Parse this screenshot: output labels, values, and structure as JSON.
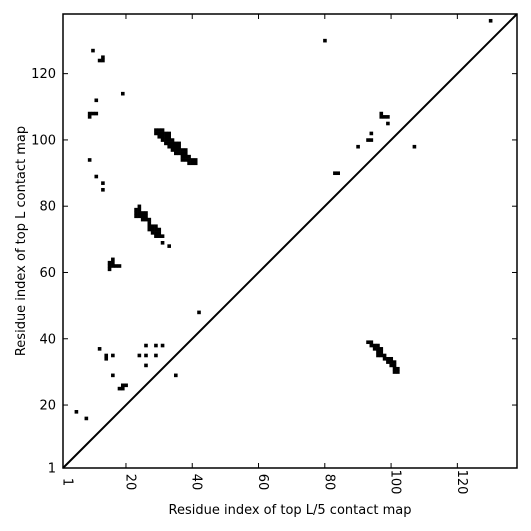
{
  "chart_data": {
    "type": "scatter",
    "title": "",
    "xlabel": "Residue index of top L/5 contact map",
    "ylabel": "Residue index of top L contact map",
    "xlim": [
      1,
      138
    ],
    "ylim": [
      1,
      138
    ],
    "grid": false,
    "legend": "none",
    "marker": "square",
    "colors": {
      "marker": "#000000",
      "frame": "#000000",
      "background": "#ffffff"
    },
    "x_ticks": [
      {
        "value": 1,
        "label": "1"
      },
      {
        "value": 20,
        "label": "20"
      },
      {
        "value": 40,
        "label": "40"
      },
      {
        "value": 60,
        "label": "60"
      },
      {
        "value": 80,
        "label": "80"
      },
      {
        "value": 100,
        "label": "100"
      },
      {
        "value": 120,
        "label": "120"
      }
    ],
    "y_ticks": [
      {
        "value": 1,
        "label": "1"
      },
      {
        "value": 20,
        "label": "20"
      },
      {
        "value": 40,
        "label": "40"
      },
      {
        "value": 60,
        "label": "60"
      },
      {
        "value": 80,
        "label": "80"
      },
      {
        "value": 100,
        "label": "100"
      },
      {
        "value": 120,
        "label": "120"
      }
    ],
    "diagonal": {
      "from": [
        1,
        1
      ],
      "to": [
        138,
        138
      ]
    },
    "series": [
      {
        "name": "",
        "points": [
          [
            5,
            18
          ],
          [
            8,
            16
          ],
          [
            9,
            94
          ],
          [
            9,
            107
          ],
          [
            9,
            108
          ],
          [
            10,
            127
          ],
          [
            10,
            108
          ],
          [
            11,
            108
          ],
          [
            11,
            112
          ],
          [
            11,
            89
          ],
          [
            12,
            37
          ],
          [
            12,
            124
          ],
          [
            13,
            125
          ],
          [
            13,
            124
          ],
          [
            13,
            87
          ],
          [
            13,
            85
          ],
          [
            14,
            35
          ],
          [
            14,
            34
          ],
          [
            15,
            61
          ],
          [
            15,
            62
          ],
          [
            15,
            63
          ],
          [
            16,
            62
          ],
          [
            16,
            63
          ],
          [
            16,
            64
          ],
          [
            16,
            35
          ],
          [
            16,
            29
          ],
          [
            17,
            62
          ],
          [
            18,
            62
          ],
          [
            18,
            25
          ],
          [
            19,
            25
          ],
          [
            19,
            26
          ],
          [
            19,
            114
          ],
          [
            20,
            26
          ],
          [
            23,
            77
          ],
          [
            23,
            78
          ],
          [
            23,
            79
          ],
          [
            24,
            77
          ],
          [
            24,
            78
          ],
          [
            24,
            79
          ],
          [
            24,
            80
          ],
          [
            24,
            35
          ],
          [
            25,
            76
          ],
          [
            25,
            77
          ],
          [
            25,
            78
          ],
          [
            26,
            76
          ],
          [
            26,
            77
          ],
          [
            26,
            78
          ],
          [
            26,
            38
          ],
          [
            26,
            35
          ],
          [
            26,
            32
          ],
          [
            27,
            75
          ],
          [
            27,
            76
          ],
          [
            27,
            73
          ],
          [
            27,
            74
          ],
          [
            28,
            72
          ],
          [
            28,
            73
          ],
          [
            28,
            74
          ],
          [
            29,
            71
          ],
          [
            29,
            72
          ],
          [
            29,
            73
          ],
          [
            29,
            74
          ],
          [
            29,
            102
          ],
          [
            29,
            103
          ],
          [
            29,
            38
          ],
          [
            29,
            35
          ],
          [
            30,
            71
          ],
          [
            30,
            72
          ],
          [
            30,
            73
          ],
          [
            30,
            101
          ],
          [
            30,
            102
          ],
          [
            30,
            103
          ],
          [
            31,
            71
          ],
          [
            31,
            69
          ],
          [
            31,
            38
          ],
          [
            31,
            100
          ],
          [
            31,
            101
          ],
          [
            31,
            102
          ],
          [
            31,
            103
          ],
          [
            32,
            99
          ],
          [
            32,
            100
          ],
          [
            32,
            101
          ],
          [
            32,
            102
          ],
          [
            33,
            68
          ],
          [
            33,
            98
          ],
          [
            33,
            99
          ],
          [
            33,
            100
          ],
          [
            33,
            101
          ],
          [
            33,
            102
          ],
          [
            34,
            97
          ],
          [
            34,
            98
          ],
          [
            34,
            99
          ],
          [
            34,
            100
          ],
          [
            35,
            96
          ],
          [
            35,
            97
          ],
          [
            35,
            98
          ],
          [
            35,
            99
          ],
          [
            35,
            29
          ],
          [
            36,
            96
          ],
          [
            36,
            97
          ],
          [
            36,
            98
          ],
          [
            36,
            99
          ],
          [
            37,
            94
          ],
          [
            37,
            95
          ],
          [
            37,
            96
          ],
          [
            37,
            97
          ],
          [
            38,
            94
          ],
          [
            38,
            95
          ],
          [
            38,
            96
          ],
          [
            38,
            97
          ],
          [
            39,
            93
          ],
          [
            39,
            94
          ],
          [
            39,
            95
          ],
          [
            40,
            93
          ],
          [
            40,
            94
          ],
          [
            41,
            93
          ],
          [
            41,
            94
          ],
          [
            42,
            48
          ],
          [
            80,
            130
          ],
          [
            83,
            90
          ],
          [
            84,
            90
          ],
          [
            90,
            98
          ],
          [
            93,
            39
          ],
          [
            93,
            100
          ],
          [
            94,
            39
          ],
          [
            94,
            38
          ],
          [
            94,
            100
          ],
          [
            94,
            102
          ],
          [
            95,
            38
          ],
          [
            95,
            37
          ],
          [
            96,
            37
          ],
          [
            96,
            38
          ],
          [
            96,
            36
          ],
          [
            96,
            35
          ],
          [
            97,
            35
          ],
          [
            97,
            36
          ],
          [
            97,
            37
          ],
          [
            97,
            108
          ],
          [
            97,
            107
          ],
          [
            98,
            34
          ],
          [
            98,
            35
          ],
          [
            98,
            107
          ],
          [
            99,
            33
          ],
          [
            99,
            34
          ],
          [
            99,
            105
          ],
          [
            99,
            107
          ],
          [
            100,
            32
          ],
          [
            100,
            33
          ],
          [
            100,
            34
          ],
          [
            101,
            30
          ],
          [
            101,
            31
          ],
          [
            101,
            32
          ],
          [
            101,
            33
          ],
          [
            102,
            30
          ],
          [
            102,
            31
          ],
          [
            107,
            98
          ],
          [
            130,
            136
          ]
        ]
      }
    ]
  }
}
